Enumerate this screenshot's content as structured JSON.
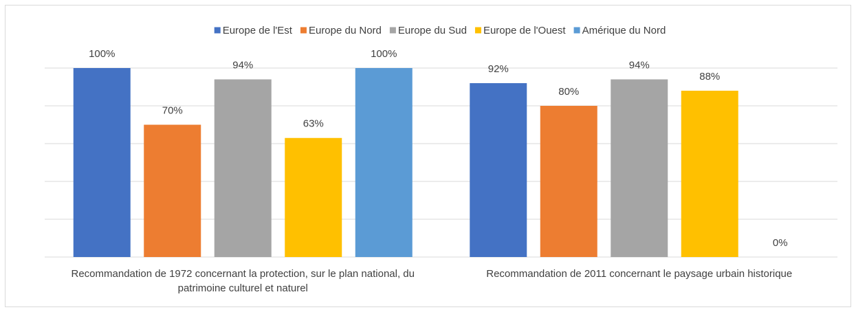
{
  "chart_data": {
    "type": "bar",
    "categories": [
      "Recommandation de 1972 concernant la protection, sur le plan national, du patrimoine culturel et naturel",
      "Recommandation de 2011 concernant le paysage urbain historique"
    ],
    "series": [
      {
        "name": "Europe de l'Est",
        "color": "#4472c4",
        "values": [
          100,
          92
        ],
        "value_labels": [
          "100%",
          "92%"
        ]
      },
      {
        "name": "Europe du Nord",
        "color": "#ed7d31",
        "values": [
          70,
          80
        ],
        "value_labels": [
          "70%",
          "80%"
        ]
      },
      {
        "name": "Europe du Sud",
        "color": "#a5a5a5",
        "values": [
          94,
          94
        ],
        "value_labels": [
          "94%",
          "94%"
        ]
      },
      {
        "name": "Europe de l'Ouest",
        "color": "#ffc000",
        "values": [
          63,
          88
        ],
        "value_labels": [
          "63%",
          "88%"
        ]
      },
      {
        "name": "Amérique du Nord",
        "color": "#5b9bd5",
        "values": [
          100,
          0
        ],
        "value_labels": [
          "100%",
          "0%"
        ]
      }
    ],
    "ylim": [
      0,
      100
    ],
    "yticks": [
      0,
      20,
      40,
      60,
      80,
      100
    ],
    "grid": true,
    "legend": "top"
  }
}
